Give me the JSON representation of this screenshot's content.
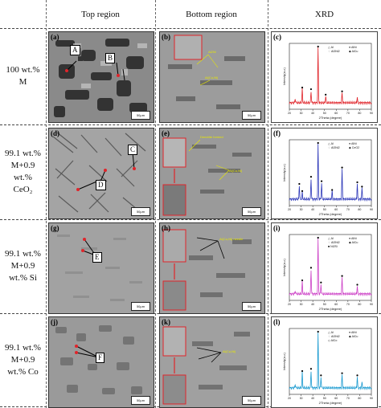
{
  "headers": {
    "top": "Top region",
    "bottom": "Bottom region",
    "xrd": "XRD"
  },
  "rows": [
    {
      "label": [
        "100 wt.%",
        "M"
      ],
      "top_letter": "(a)",
      "bottom_letter": "(b)",
      "xrd_letter": "(c)",
      "callouts": [
        "A",
        "B"
      ],
      "bottom_notes": [
        "Al2Ni",
        "Al(Cu,Ni)"
      ],
      "color": "#e0242a",
      "legend": [
        "△ Al",
        "● AlNi",
        "♢ Al3Ni2",
        "◆ AlCu"
      ],
      "scale": "50μm"
    },
    {
      "label": [
        "99.1 wt.%",
        "M+0.9",
        "wt.%",
        "CeO₂"
      ],
      "top_letter": "(d)",
      "bottom_letter": "(e)",
      "xrd_letter": "(f)",
      "callouts": [
        "C",
        "D"
      ],
      "bottom_notes": [
        "Dendrite formed",
        "Al(Cu,Ni)"
      ],
      "color": "#2b36b8",
      "legend": [
        "△ Al",
        "● AlNi",
        "♢ Al3Ni2",
        "◆ CeO2"
      ],
      "scale": "50μm"
    },
    {
      "label": [
        "99.1 wt.%",
        "M+0.9",
        "wt.% Si"
      ],
      "top_letter": "(g)",
      "bottom_letter": "(h)",
      "xrd_letter": "(i)",
      "callouts": [
        "E"
      ],
      "bottom_notes": [
        "Al(Cu,Ni) needle"
      ],
      "color": "#cc3fc6",
      "legend": [
        "△ Al",
        "● AlNi",
        "♢ Al3Ni2",
        "◆ AlCu",
        "■ Ni2Si"
      ],
      "scale": "50μm"
    },
    {
      "label": [
        "99.1 wt.%",
        "M+0.9",
        "wt.% Co"
      ],
      "top_letter": "(j)",
      "bottom_letter": "(k)",
      "xrd_letter": "(l)",
      "callouts": [
        "F"
      ],
      "bottom_notes": [
        "Al(Cu,Ni)"
      ],
      "color": "#1a9ad0",
      "legend": [
        "△ Al",
        "● AlNi",
        "♢ Al3Ni2",
        "◆ AlCu",
        "◇ AlCo"
      ],
      "scale": "50μm"
    }
  ],
  "xrd_axes": {
    "xlabel": "2Theta (degree)",
    "ylabel": "Intensity(a.u.)",
    "xticks": [
      "20",
      "30",
      "40",
      "50",
      "60",
      "70",
      "80",
      "90"
    ]
  },
  "chart_data": [
    {
      "type": "line",
      "title": "",
      "xlabel": "2Theta (degree)",
      "ylabel": "Intensity(a.u.)",
      "xlim": [
        20,
        90
      ],
      "color": "#e0242a",
      "peaks": [
        {
          "x": 25,
          "h": 0.08
        },
        {
          "x": 31,
          "h": 0.25
        },
        {
          "x": 38.5,
          "h": 0.22
        },
        {
          "x": 44.5,
          "h": 1.0
        },
        {
          "x": 51,
          "h": 0.12
        },
        {
          "x": 65,
          "h": 0.18
        },
        {
          "x": 78,
          "h": 0.1
        }
      ]
    },
    {
      "type": "line",
      "title": "",
      "xlabel": "2Theta (degree)",
      "ylabel": "Intensity(a.u.)",
      "xlim": [
        20,
        90
      ],
      "color": "#2b36b8",
      "peaks": [
        {
          "x": 28.5,
          "h": 0.25
        },
        {
          "x": 31,
          "h": 0.12
        },
        {
          "x": 38.5,
          "h": 0.38
        },
        {
          "x": 44.5,
          "h": 1.0
        },
        {
          "x": 47.5,
          "h": 0.3
        },
        {
          "x": 56.5,
          "h": 0.14
        },
        {
          "x": 65,
          "h": 0.55
        },
        {
          "x": 78,
          "h": 0.28
        },
        {
          "x": 82,
          "h": 0.2
        }
      ]
    },
    {
      "type": "line",
      "title": "",
      "xlabel": "2Theta (degree)",
      "ylabel": "Intensity(a.u.)",
      "xlim": [
        20,
        90
      ],
      "color": "#cc3fc6",
      "peaks": [
        {
          "x": 25,
          "h": 0.06
        },
        {
          "x": 31,
          "h": 0.22
        },
        {
          "x": 38.5,
          "h": 0.45
        },
        {
          "x": 44.5,
          "h": 1.0
        },
        {
          "x": 47,
          "h": 0.18
        },
        {
          "x": 65,
          "h": 0.3
        },
        {
          "x": 78,
          "h": 0.14
        }
      ]
    },
    {
      "type": "line",
      "title": "",
      "xlabel": "2Theta (degree)",
      "ylabel": "Intensity(a.u.)",
      "xlim": [
        20,
        90
      ],
      "color": "#1a9ad0",
      "peaks": [
        {
          "x": 25,
          "h": 0.07
        },
        {
          "x": 31,
          "h": 0.28
        },
        {
          "x": 38.5,
          "h": 0.32
        },
        {
          "x": 44.5,
          "h": 1.0
        },
        {
          "x": 47,
          "h": 0.2
        },
        {
          "x": 65,
          "h": 0.24
        },
        {
          "x": 78,
          "h": 0.2
        },
        {
          "x": 82,
          "h": 0.1
        }
      ]
    }
  ]
}
